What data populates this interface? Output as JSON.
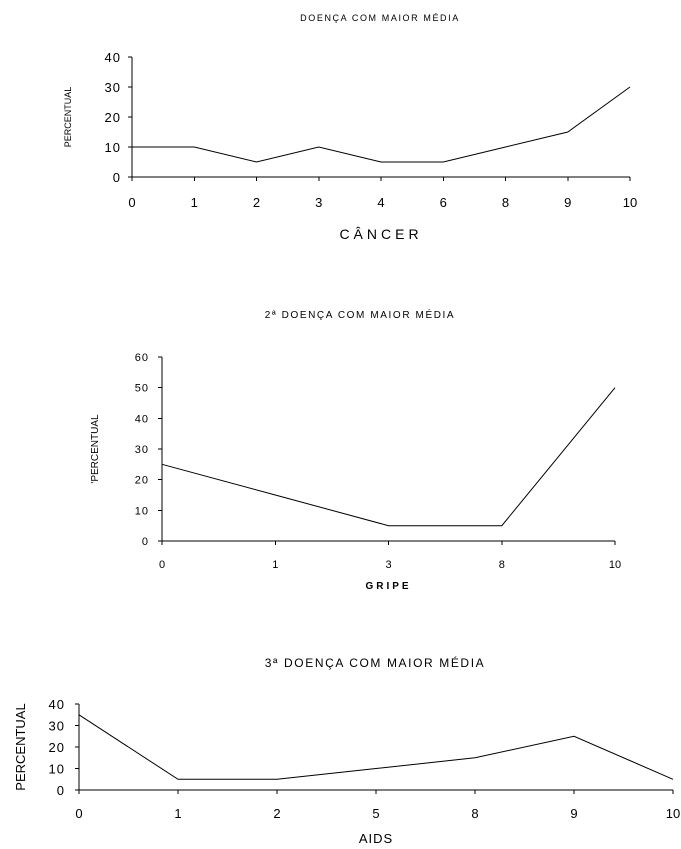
{
  "chart_data": [
    {
      "type": "line",
      "title": "DOENÇA COM MAIOR MÉDIA",
      "xlabel": "CÂNCER",
      "ylabel": "PERCENTUAL",
      "categories": [
        "0",
        "1",
        "2",
        "3",
        "4",
        "6",
        "8",
        "9",
        "10"
      ],
      "values": [
        10,
        10,
        5,
        10,
        5,
        5,
        10,
        15,
        30
      ],
      "ylim": [
        0,
        40
      ],
      "yticks": [
        "0",
        "10",
        "20",
        "30",
        "40"
      ],
      "grid": false,
      "legend": "none"
    },
    {
      "type": "line",
      "title": "2ª DOENÇA COM MAIOR MÉDIA",
      "xlabel": "GRIPE",
      "ylabel": "'PERCENTUAL",
      "categories": [
        "0",
        "1",
        "3",
        "8",
        "10"
      ],
      "values": [
        25,
        15,
        5,
        5,
        50
      ],
      "ylim": [
        0,
        60
      ],
      "yticks": [
        "0",
        "10",
        "20",
        "30",
        "40",
        "50",
        "60"
      ],
      "grid": false,
      "legend": "none"
    },
    {
      "type": "line",
      "title": "3ª DOENÇA COM MAIOR MÉDIA",
      "xlabel": "AIDS",
      "ylabel": "PERCENTUAL",
      "categories": [
        "0",
        "1",
        "2",
        "5",
        "8",
        "9",
        "10"
      ],
      "values": [
        35,
        5,
        5,
        10,
        15,
        25,
        5
      ],
      "ylim": [
        0,
        40
      ],
      "yticks": [
        "0",
        "10",
        "20",
        "30",
        "40"
      ],
      "grid": false,
      "legend": "none"
    }
  ]
}
